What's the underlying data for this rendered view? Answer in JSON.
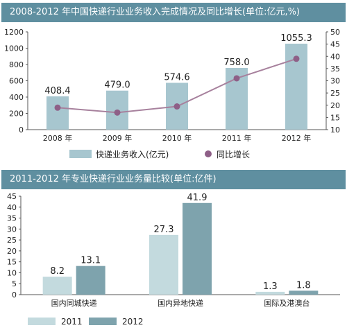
{
  "chart_data": [
    {
      "type": "bar+line",
      "title": "2008-2012 年中国快递行业业务收入完成情况及同比增长(单位:亿元,%)",
      "categories": [
        "2008 年",
        "2009 年",
        "2010 年",
        "2011 年",
        "2012 年"
      ],
      "series": [
        {
          "name": "快递业务收入(亿元)",
          "type": "bar",
          "axis": "left",
          "values": [
            408.4,
            479.0,
            574.6,
            758.0,
            1055.3
          ],
          "labels": [
            "408.4",
            "479.0",
            "574.6",
            "758.0",
            "1055.3"
          ]
        },
        {
          "name": "同比增长",
          "type": "line",
          "axis": "right",
          "values": [
            19,
            17,
            19.5,
            31,
            39
          ]
        }
      ],
      "y_left": {
        "range": [
          0,
          1200
        ],
        "ticks": [
          "0",
          "200",
          "400",
          "600",
          "800",
          "1000",
          "1200"
        ]
      },
      "y_right": {
        "range": [
          10,
          50
        ],
        "ticks": [
          "10",
          "15",
          "20",
          "25",
          "30",
          "35",
          "40",
          "45",
          "50"
        ]
      },
      "grid": false,
      "legend": "bottom",
      "colors": {
        "bar": "#a7c6cf",
        "line": "#a7819d",
        "marker": "#8e5f87",
        "banner": "#5f8fa0"
      }
    },
    {
      "type": "bar",
      "title": "2011-2012 年专业快递行业业务量比较(单位:亿件)",
      "categories": [
        "国内同城快递",
        "国内异地快递",
        "国际及港澳台"
      ],
      "series": [
        {
          "name": "2011",
          "values": [
            8.2,
            27.3,
            1.3
          ],
          "labels": [
            "8.2",
            "27.3",
            "1.3"
          ]
        },
        {
          "name": "2012",
          "values": [
            13.1,
            41.9,
            1.8
          ],
          "labels": [
            "13.1",
            "41.9",
            "1.8"
          ]
        }
      ],
      "ylim": [
        0,
        45
      ],
      "yticks": [
        "0",
        "5",
        "10",
        "15",
        "20",
        "25",
        "30",
        "35",
        "40",
        "45"
      ],
      "grid": false,
      "legend": "bottom",
      "colors": {
        "2011": "#c3dade",
        "2012": "#7ea3ad"
      }
    }
  ]
}
